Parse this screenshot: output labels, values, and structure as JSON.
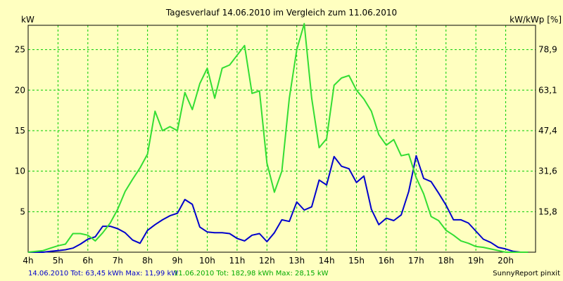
{
  "chart_data": {
    "type": "line",
    "title": "Tagesverlauf 14.06.2010 im Vergleich zum 11.06.2010",
    "ylabel_left": "kW",
    "ylabel_right": "kW/kWp [%]",
    "x_ticks": [
      "4h",
      "5h",
      "6h",
      "7h",
      "8h",
      "9h",
      "10h",
      "11h",
      "12h",
      "13h",
      "14h",
      "15h",
      "16h",
      "17h",
      "18h",
      "19h",
      "20h"
    ],
    "y_ticks_left": [
      "5",
      "10",
      "15",
      "20",
      "25"
    ],
    "y_ticks_right": [
      "15,8",
      "31,6",
      "47,4",
      "63,1",
      "78,9"
    ],
    "xlim": [
      4,
      21
    ],
    "ylim": [
      0,
      28
    ],
    "grid": true,
    "series": [
      {
        "name": "14.06.2010",
        "color": "#0000CC",
        "x": [
          4.0,
          4.5,
          4.75,
          5.0,
          5.25,
          5.5,
          5.75,
          6.0,
          6.25,
          6.5,
          6.75,
          7.0,
          7.25,
          7.5,
          7.75,
          8.0,
          8.25,
          8.5,
          8.75,
          9.0,
          9.25,
          9.5,
          9.75,
          10.0,
          10.25,
          10.5,
          10.75,
          11.0,
          11.25,
          11.5,
          11.75,
          12.0,
          12.25,
          12.5,
          12.75,
          13.0,
          13.25,
          13.5,
          13.75,
          14.0,
          14.25,
          14.5,
          14.75,
          15.0,
          15.25,
          15.5,
          15.75,
          16.0,
          16.25,
          16.5,
          16.75,
          17.0,
          17.25,
          17.5,
          17.75,
          18.0,
          18.25,
          18.5,
          18.75,
          19.0,
          19.25,
          19.5,
          19.75,
          20.0,
          20.25,
          20.5,
          20.75
        ],
        "values": [
          0,
          0,
          0.1,
          0.2,
          0.3,
          0.5,
          1.0,
          1.6,
          1.9,
          3.2,
          3.2,
          2.9,
          2.4,
          1.5,
          1.1,
          2.7,
          3.4,
          4.0,
          4.5,
          4.8,
          6.5,
          5.9,
          3.1,
          2.5,
          2.4,
          2.4,
          2.3,
          1.7,
          1.4,
          2.1,
          2.3,
          1.3,
          2.4,
          4.0,
          3.8,
          6.2,
          5.2,
          5.6,
          8.9,
          8.3,
          11.8,
          10.6,
          10.3,
          8.6,
          9.4,
          5.3,
          3.4,
          4.2,
          3.9,
          4.6,
          7.5,
          11.9,
          9.1,
          8.7,
          7.3,
          5.8,
          4.0,
          4.0,
          3.6,
          2.6,
          1.6,
          1.2,
          0.6,
          0.4,
          0.1,
          0,
          0
        ]
      },
      {
        "name": "11.06.2010",
        "color": "#33DD33",
        "x": [
          4.0,
          4.5,
          4.75,
          5.0,
          5.25,
          5.5,
          5.75,
          6.0,
          6.25,
          6.5,
          6.75,
          7.0,
          7.25,
          7.5,
          7.75,
          8.0,
          8.25,
          8.5,
          8.75,
          9.0,
          9.25,
          9.5,
          9.75,
          10.0,
          10.25,
          10.5,
          10.75,
          11.0,
          11.25,
          11.5,
          11.75,
          12.0,
          12.25,
          12.5,
          12.75,
          13.0,
          13.25,
          13.5,
          13.75,
          14.0,
          14.25,
          14.5,
          14.75,
          15.0,
          15.25,
          15.5,
          15.75,
          16.0,
          16.25,
          16.5,
          16.75,
          17.0,
          17.25,
          17.5,
          17.75,
          18.0,
          18.25,
          18.5,
          18.75,
          19.0,
          19.25,
          19.5,
          19.75,
          20.0,
          20.25,
          20.5,
          20.75
        ],
        "values": [
          0,
          0.2,
          0.5,
          0.8,
          1.0,
          2.3,
          2.3,
          2.1,
          1.4,
          2.4,
          3.6,
          5.3,
          7.5,
          9.0,
          10.4,
          12.1,
          17.4,
          15.0,
          15.5,
          15.0,
          19.7,
          17.6,
          20.8,
          22.7,
          19.0,
          22.7,
          23.1,
          24.3,
          25.5,
          19.6,
          19.9,
          11.0,
          7.4,
          10.0,
          19.0,
          25.0,
          28.2,
          19.0,
          12.9,
          14.0,
          20.6,
          21.5,
          21.8,
          20.0,
          18.9,
          17.4,
          14.5,
          13.2,
          13.9,
          11.9,
          12.1,
          9.2,
          7.2,
          4.4,
          3.9,
          2.7,
          2.1,
          1.4,
          1.1,
          0.7,
          0.6,
          0.4,
          0.2,
          0,
          0,
          0,
          0
        ]
      }
    ]
  },
  "footer": {
    "series1_text": "14.06.2010 Tot: 63,45 kWh Max: 11,99 kW",
    "series2_text": "11.06.2010 Tot: 182,98 kWh Max: 28,15 kW",
    "credit": "SunnyReport pinxit"
  },
  "colors": {
    "background": "#FFFFC0",
    "grid": "#00CC00",
    "series1": "#0000CC",
    "series2": "#33DD33"
  }
}
